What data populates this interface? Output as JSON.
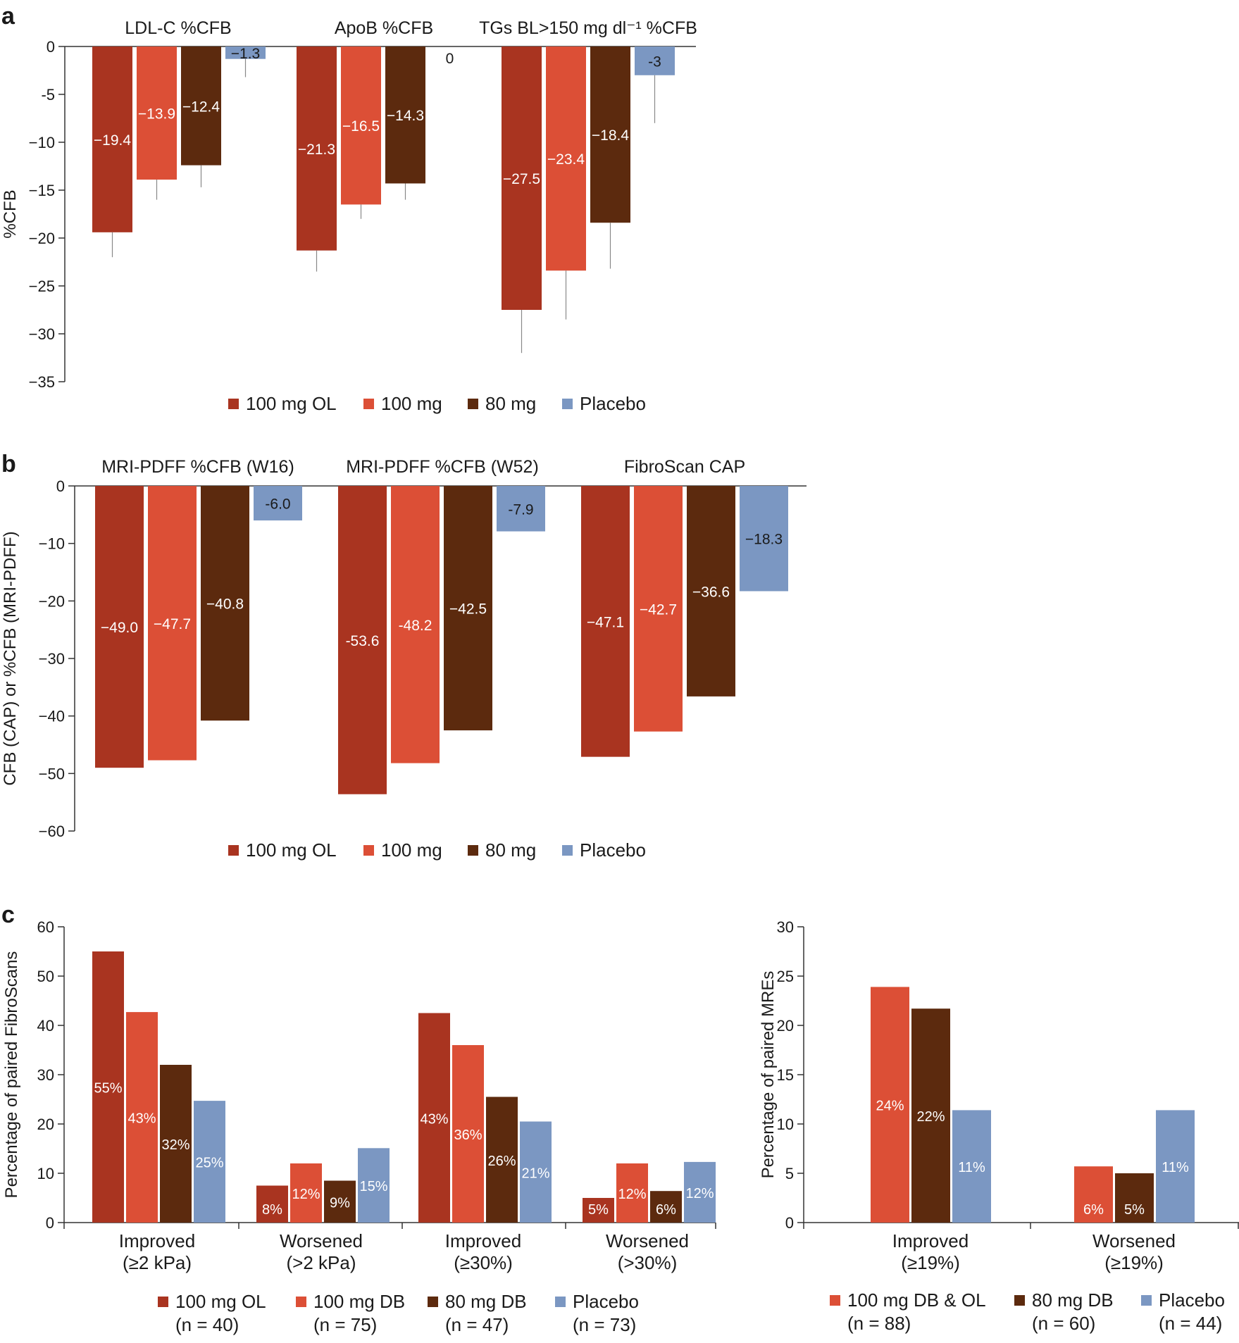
{
  "colors": {
    "100 mg OL": "#a93420",
    "100 mg": "#dc4f36",
    "100 mg DB": "#dc4f36",
    "100 mg DB & OL": "#dc4f36",
    "80 mg": "#5c2a0e",
    "80 mg DB": "#5c2a0e",
    "Placebo": "#7b97c2",
    "axis": "#333333",
    "bar_label_light": "#ffffff",
    "bar_label_dark": "#1a1a1a"
  },
  "chart_data": [
    {
      "panel": "a",
      "type": "bar",
      "ylabel": "%CFB",
      "ylim": [
        -35,
        0
      ],
      "yticks": [
        "0",
        "-5",
        "−10",
        "−15",
        "−20",
        "−25",
        "−30",
        "−35"
      ],
      "ytick_values": [
        0,
        -5,
        -10,
        -15,
        -20,
        -25,
        -30,
        -35
      ],
      "groups": [
        {
          "title": "LDL-C %CFB",
          "labels": [
            "−19.4",
            "−13.9",
            "−12.4",
            "−1.3"
          ],
          "values": [
            -19.4,
            -13.9,
            -12.4,
            -1.3
          ],
          "err_to": [
            -22.0,
            -16.0,
            -14.7,
            -3.2
          ]
        },
        {
          "title": "ApoB %CFB",
          "labels": [
            "−21.3",
            "−16.5",
            "−14.3",
            "0"
          ],
          "values": [
            -21.3,
            -16.5,
            -14.3,
            0
          ],
          "err_to": [
            -23.5,
            -18.0,
            -16.0,
            null
          ]
        },
        {
          "title": "TGs BL>150 mg dl⁻¹ %CFB",
          "labels": [
            "−27.5",
            "−23.4",
            "−18.4",
            "-3"
          ],
          "values": [
            -27.5,
            -23.4,
            -18.4,
            -3
          ],
          "err_to": [
            -32.0,
            -28.5,
            -23.2,
            -8.0
          ]
        }
      ],
      "series": [
        {
          "name": "100 mg OL"
        },
        {
          "name": "100 mg"
        },
        {
          "name": "80 mg"
        },
        {
          "name": "Placebo"
        }
      ],
      "legend": [
        "100 mg OL",
        "100 mg",
        "80 mg",
        "Placebo"
      ],
      "legend_position": "bottom"
    },
    {
      "panel": "b",
      "type": "bar",
      "ylabel": "CFB (CAP) or %CFB (MRI-PDFF)",
      "ylim": [
        -60,
        0
      ],
      "yticks": [
        "0",
        "−10",
        "−20",
        "−30",
        "−40",
        "−50",
        "−60"
      ],
      "ytick_values": [
        0,
        -10,
        -20,
        -30,
        -40,
        -50,
        -60
      ],
      "groups": [
        {
          "title": "MRI-PDFF %CFB (W16)",
          "labels": [
            "−49.0",
            "−47.7",
            "−40.8",
            "-6.0"
          ],
          "values": [
            -49.0,
            -47.7,
            -40.8,
            -6.0
          ]
        },
        {
          "title": "MRI-PDFF %CFB (W52)",
          "labels": [
            "-53.6",
            "-48.2",
            "−42.5",
            "-7.9"
          ],
          "values": [
            -53.6,
            -48.2,
            -42.5,
            -7.9
          ]
        },
        {
          "title": "FibroScan CAP",
          "labels": [
            "−47.1",
            "−42.7",
            "−36.6",
            "−18.3"
          ],
          "values": [
            -47.1,
            -42.7,
            -36.6,
            -18.3
          ]
        }
      ],
      "series": [
        {
          "name": "100 mg OL"
        },
        {
          "name": "100 mg"
        },
        {
          "name": "80 mg"
        },
        {
          "name": "Placebo"
        }
      ],
      "legend": [
        "100 mg OL",
        "100 mg",
        "80 mg",
        "Placebo"
      ],
      "legend_position": "bottom"
    },
    {
      "panel": "c",
      "type": "bar",
      "ylabel": "Percentage of paired FibroScans",
      "ylim": [
        0,
        60
      ],
      "yticks": [
        "0",
        "10",
        "20",
        "30",
        "40",
        "50",
        "60"
      ],
      "ytick_values": [
        0,
        10,
        20,
        30,
        40,
        50,
        60
      ],
      "categories": [
        [
          "Improved",
          "(≥2 kPa)"
        ],
        [
          "Worsened",
          "(>2 kPa)"
        ],
        [
          "Improved",
          "(≥30%)"
        ],
        [
          "Worsened",
          "(>30%)"
        ]
      ],
      "series": [
        {
          "name": "100 mg OL",
          "n": "(n = 40)",
          "values": [
            55,
            7.5,
            42.5,
            5
          ],
          "labels": [
            "55%",
            "8%",
            "43%",
            "5%"
          ]
        },
        {
          "name": "100 mg DB",
          "n": "(n = 75)",
          "values": [
            42.7,
            12,
            36,
            12
          ],
          "labels": [
            "43%",
            "12%",
            "36%",
            "12%"
          ]
        },
        {
          "name": "80 mg DB",
          "n": "(n = 47)",
          "values": [
            32,
            8.5,
            25.5,
            6.4
          ],
          "labels": [
            "32%",
            "9%",
            "26%",
            "6%"
          ]
        },
        {
          "name": "Placebo",
          "n": "(n = 73)",
          "values": [
            24.7,
            15.1,
            20.5,
            12.3
          ],
          "labels": [
            "25%",
            "15%",
            "21%",
            "12%"
          ]
        }
      ],
      "legend_position": "bottom"
    },
    {
      "panel": "c-right",
      "type": "bar",
      "ylabel": "Percentage of paired MREs",
      "ylim": [
        0,
        30
      ],
      "yticks": [
        "0",
        "5",
        "10",
        "15",
        "20",
        "25",
        "30"
      ],
      "ytick_values": [
        0,
        5,
        10,
        15,
        20,
        25,
        30
      ],
      "categories": [
        [
          "Improved",
          "(≥19%)"
        ],
        [
          "Worsened",
          "(≥19%)"
        ]
      ],
      "series": [
        {
          "name": "100 mg DB & OL",
          "n": "(n = 88)",
          "values": [
            23.9,
            5.7
          ],
          "labels": [
            "24%",
            "6%"
          ]
        },
        {
          "name": "80 mg DB",
          "n": "(n = 60)",
          "values": [
            21.7,
            5
          ],
          "labels": [
            "22%",
            "5%"
          ]
        },
        {
          "name": "Placebo",
          "n": "(n = 44)",
          "values": [
            11.4,
            11.4
          ],
          "labels": [
            "11%",
            "11%"
          ]
        }
      ],
      "legend_position": "bottom"
    }
  ],
  "panel_labels": [
    "a",
    "b",
    "c"
  ]
}
